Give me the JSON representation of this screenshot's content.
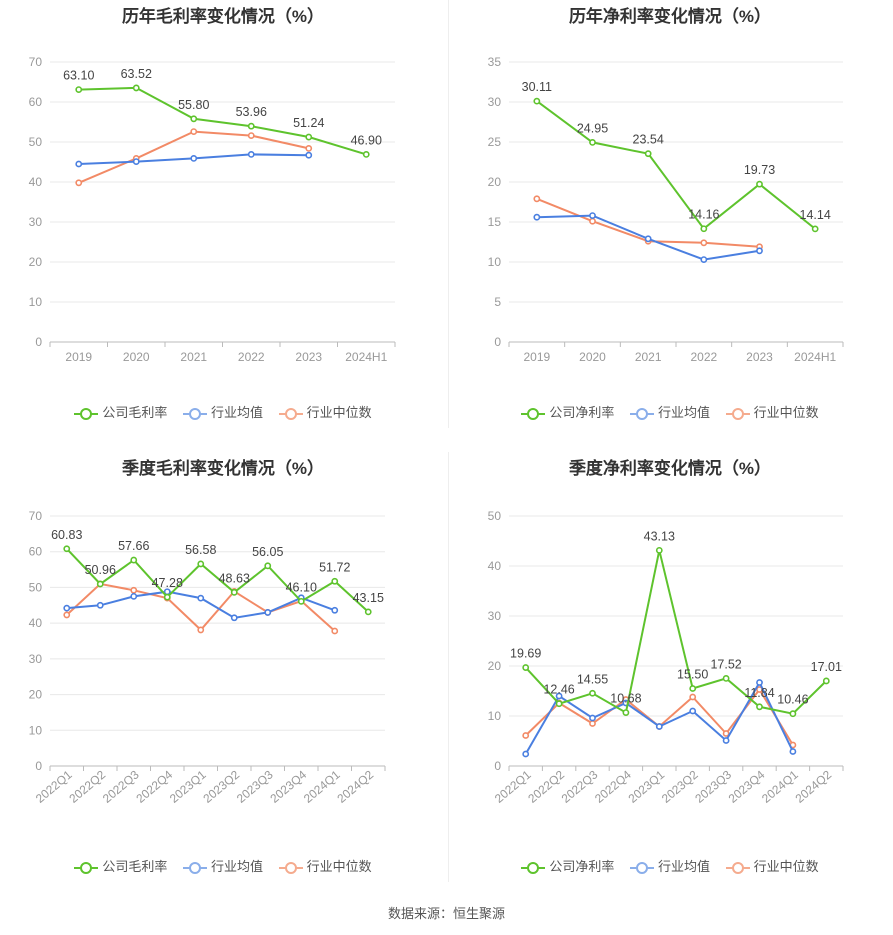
{
  "source_text": "数据来源：恒生聚源",
  "colors": {
    "company": "#5ec32d",
    "avg": "#4a7fe0",
    "median": "#f28a66",
    "grid": "#e8e8e8",
    "axis": "#999999"
  },
  "chart_data": [
    {
      "type": "line",
      "title": "历年毛利率变化情况（%）",
      "categories": [
        "2019",
        "2020",
        "2021",
        "2022",
        "2023",
        "2024H1"
      ],
      "ylim": [
        0,
        70
      ],
      "yticks": [
        0,
        10,
        20,
        30,
        40,
        50,
        60,
        70
      ],
      "rotate_labels": false,
      "series": [
        {
          "name": "公司毛利率",
          "key": "company",
          "values": [
            63.1,
            63.52,
            55.8,
            53.96,
            51.24,
            46.9
          ],
          "labels": [
            "63.10",
            "63.52",
            "55.80",
            "53.96",
            "51.24",
            "46.90"
          ]
        },
        {
          "name": "行业均值",
          "key": "avg",
          "values": [
            44.5,
            45.1,
            45.9,
            46.9,
            46.7,
            null
          ]
        },
        {
          "name": "行业中位数",
          "key": "median",
          "values": [
            39.8,
            45.9,
            52.6,
            51.6,
            48.4,
            null
          ]
        }
      ]
    },
    {
      "type": "line",
      "title": "历年净利率变化情况（%）",
      "categories": [
        "2019",
        "2020",
        "2021",
        "2022",
        "2023",
        "2024H1"
      ],
      "ylim": [
        0,
        35
      ],
      "yticks": [
        0,
        5,
        10,
        15,
        20,
        25,
        30,
        35
      ],
      "rotate_labels": false,
      "series": [
        {
          "name": "公司净利率",
          "key": "company",
          "values": [
            30.11,
            24.95,
            23.54,
            14.16,
            19.73,
            14.14
          ],
          "labels": [
            "30.11",
            "24.95",
            "23.54",
            "14.16",
            "19.73",
            "14.14"
          ]
        },
        {
          "name": "行业均值",
          "key": "avg",
          "values": [
            15.6,
            15.8,
            12.9,
            10.3,
            11.4,
            null
          ]
        },
        {
          "name": "行业中位数",
          "key": "median",
          "values": [
            17.9,
            15.1,
            12.6,
            12.4,
            11.9,
            null
          ]
        }
      ]
    },
    {
      "type": "line",
      "title": "季度毛利率变化情况（%）",
      "categories": [
        "2022Q1",
        "2022Q2",
        "2022Q3",
        "2022Q4",
        "2023Q1",
        "2023Q2",
        "2023Q3",
        "2023Q4",
        "2024Q1",
        "2024Q2"
      ],
      "ylim": [
        0,
        70
      ],
      "yticks": [
        0,
        10,
        20,
        30,
        40,
        50,
        60,
        70
      ],
      "rotate_labels": true,
      "series": [
        {
          "name": "公司毛利率",
          "key": "company",
          "values": [
            60.83,
            50.96,
            57.66,
            47.28,
            56.58,
            48.63,
            56.05,
            46.1,
            51.72,
            43.15
          ],
          "labels": [
            "60.83",
            "50.96",
            "57.66",
            "47.28",
            "56.58",
            "48.63",
            "56.05",
            "46.10",
            "51.72",
            "43.15"
          ]
        },
        {
          "name": "行业均值",
          "key": "avg",
          "values": [
            44.2,
            45.0,
            47.5,
            48.8,
            47.0,
            41.5,
            43.0,
            47.1,
            43.6,
            null
          ]
        },
        {
          "name": "行业中位数",
          "key": "median",
          "values": [
            42.3,
            51.0,
            49.2,
            47.0,
            38.1,
            48.9,
            43.0,
            46.2,
            37.8,
            null
          ]
        }
      ]
    },
    {
      "type": "line",
      "title": "季度净利率变化情况（%）",
      "categories": [
        "2022Q1",
        "2022Q2",
        "2022Q3",
        "2022Q4",
        "2023Q1",
        "2023Q2",
        "2023Q3",
        "2023Q4",
        "2024Q1",
        "2024Q2"
      ],
      "ylim": [
        0,
        50
      ],
      "yticks": [
        0,
        10,
        20,
        30,
        40,
        50
      ],
      "rotate_labels": true,
      "series": [
        {
          "name": "公司净利率",
          "key": "company",
          "values": [
            19.69,
            12.46,
            14.55,
            10.68,
            43.13,
            15.5,
            17.52,
            11.84,
            10.46,
            17.01
          ],
          "labels": [
            "19.69",
            "12.46",
            "14.55",
            "10.68",
            "43.13",
            "15.50",
            "17.52",
            "11.84",
            "10.46",
            "17.01"
          ]
        },
        {
          "name": "行业均值",
          "key": "avg",
          "values": [
            2.4,
            14.0,
            9.6,
            12.6,
            7.9,
            11.0,
            5.1,
            16.7,
            2.9,
            null
          ]
        },
        {
          "name": "行业中位数",
          "key": "median",
          "values": [
            6.1,
            12.6,
            8.5,
            13.3,
            7.9,
            13.8,
            6.5,
            15.3,
            4.2,
            null
          ]
        }
      ]
    }
  ]
}
